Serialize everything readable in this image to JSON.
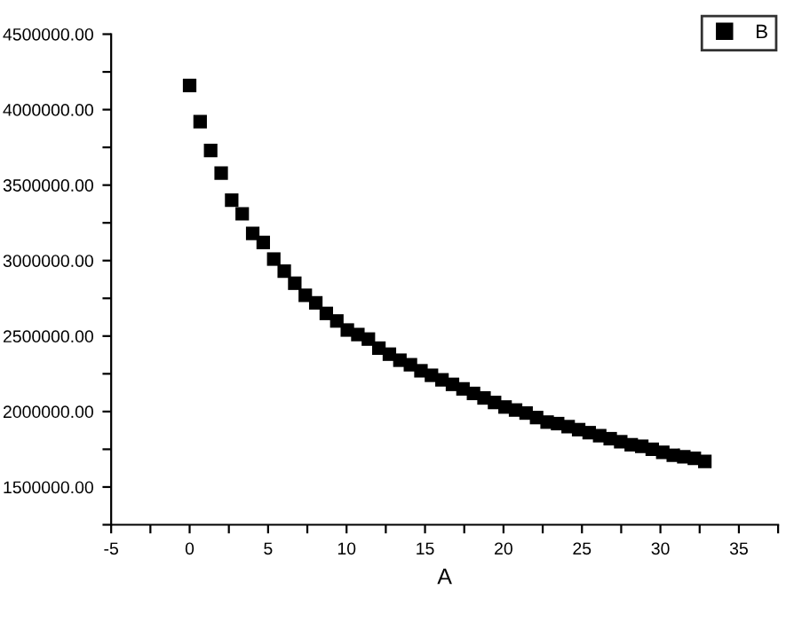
{
  "chart_data": {
    "type": "scatter",
    "xlabel": "A",
    "marker": "square",
    "legend": "top right",
    "grid": false,
    "x": [
      0,
      0.67,
      1.34,
      2.01,
      2.68,
      3.35,
      4.02,
      4.69,
      5.36,
      6.03,
      6.7,
      7.37,
      8.04,
      8.71,
      9.38,
      10.05,
      10.72,
      11.39,
      12.06,
      12.73,
      13.4,
      14.07,
      14.74,
      15.41,
      16.08,
      16.75,
      17.42,
      18.09,
      18.76,
      19.43,
      20.1,
      20.77,
      21.44,
      22.11,
      22.78,
      23.45,
      24.12,
      24.79,
      25.46,
      26.13,
      26.8,
      27.47,
      28.14,
      28.81,
      29.48,
      30.15,
      30.82,
      31.49,
      32.16,
      32.83
    ],
    "series": [
      {
        "name": "B",
        "color": "#000000",
        "values": [
          4160000,
          3920000,
          3730000,
          3580000,
          3400000,
          3310000,
          3180000,
          3120000,
          3010000,
          2930000,
          2850000,
          2770000,
          2720000,
          2650000,
          2600000,
          2540000,
          2510000,
          2480000,
          2420000,
          2380000,
          2340000,
          2310000,
          2270000,
          2240000,
          2210000,
          2180000,
          2150000,
          2120000,
          2090000,
          2060000,
          2030000,
          2010000,
          1990000,
          1960000,
          1930000,
          1920000,
          1900000,
          1880000,
          1860000,
          1840000,
          1820000,
          1800000,
          1780000,
          1770000,
          1750000,
          1730000,
          1710000,
          1700000,
          1690000,
          1670000
        ]
      }
    ],
    "xlim": [
      -5,
      37.5
    ],
    "ylim": [
      1250000,
      4500000
    ],
    "xticks": [
      -5,
      {
        "value": -2.5,
        "label": null
      },
      0,
      {
        "value": 2.5,
        "label": null
      },
      5,
      {
        "value": 7.5,
        "label": null
      },
      10,
      {
        "value": 12.5,
        "label": null
      },
      15,
      {
        "value": 17.5,
        "label": null
      },
      20,
      {
        "value": 22.5,
        "label": null
      },
      25,
      {
        "value": 27.5,
        "label": null
      },
      30,
      {
        "value": 32.5,
        "label": null
      },
      35,
      {
        "value": 37.5,
        "label": null
      }
    ],
    "yticks": [
      {
        "value": 1250000,
        "label": null
      },
      {
        "value": 1500000,
        "label": "1500000.00"
      },
      {
        "value": 1750000,
        "label": null
      },
      {
        "value": 2000000,
        "label": "2000000.00"
      },
      {
        "value": 2250000,
        "label": null
      },
      {
        "value": 2500000,
        "label": "2500000.00"
      },
      {
        "value": 2750000,
        "label": null
      },
      {
        "value": 3000000,
        "label": "3000000.00"
      },
      {
        "value": 3250000,
        "label": null
      },
      {
        "value": 3500000,
        "label": "3500000.00"
      },
      {
        "value": 3750000,
        "label": null
      },
      {
        "value": 4000000,
        "label": "4000000.00"
      },
      {
        "value": 4250000,
        "label": null
      },
      {
        "value": 4500000,
        "label": "4500000.00"
      }
    ]
  }
}
